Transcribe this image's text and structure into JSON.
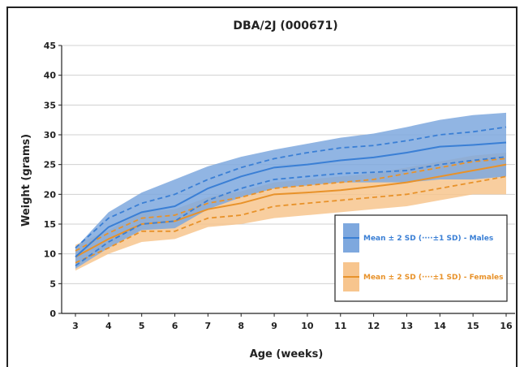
{
  "chart_data": {
    "type": "area",
    "title": "DBA/2J (000671)",
    "xlabel": "Age (weeks)",
    "ylabel": "Weight (grams)",
    "xlim": [
      3,
      16
    ],
    "ylim": [
      0,
      45
    ],
    "xticks": [
      3,
      4,
      5,
      6,
      7,
      8,
      9,
      10,
      11,
      12,
      13,
      14,
      15,
      16
    ],
    "yticks": [
      0,
      5,
      10,
      15,
      20,
      25,
      30,
      35,
      40,
      45
    ],
    "grid": true,
    "legend_position": "center-right",
    "x": [
      3,
      4,
      5,
      6,
      7,
      8,
      9,
      10,
      11,
      12,
      13,
      14,
      15,
      16
    ],
    "series": [
      {
        "name": "Mean ± 2 SD (····±1 SD) - Males",
        "color": "#3a7fd5",
        "band_color": "#7ea8de",
        "mean": [
          9.5,
          14.5,
          17.0,
          18.0,
          21.0,
          23.0,
          24.5,
          25.0,
          25.7,
          26.2,
          27.0,
          28.0,
          28.3,
          28.7
        ],
        "plus1sd": [
          11.0,
          16.0,
          18.5,
          20.0,
          22.5,
          24.5,
          26.0,
          27.0,
          27.8,
          28.2,
          29.0,
          30.0,
          30.5,
          31.3
        ],
        "minus1sd": [
          8.0,
          12.0,
          15.0,
          15.5,
          19.0,
          21.0,
          22.5,
          23.0,
          23.5,
          23.7,
          24.0,
          25.0,
          25.7,
          26.3
        ],
        "upper2sd": [
          11.0,
          17.0,
          20.3,
          22.5,
          24.7,
          26.3,
          27.5,
          28.5,
          29.5,
          30.2,
          31.3,
          32.5,
          33.3,
          33.7
        ],
        "lower2sd": [
          7.5,
          11.0,
          14.0,
          14.3,
          17.5,
          19.5,
          21.0,
          21.5,
          22.0,
          22.0,
          22.0,
          22.5,
          22.5,
          23.0
        ]
      },
      {
        "name": "Mean ± 2 SD (····±1 SD) - Females",
        "color": "#e8922a",
        "band_color": "#f7c58e",
        "mean": [
          9.5,
          12.5,
          15.0,
          15.5,
          17.5,
          18.5,
          20.0,
          20.3,
          20.7,
          21.3,
          22.0,
          23.0,
          24.0,
          25.0
        ],
        "plus1sd": [
          10.5,
          13.5,
          16.0,
          16.5,
          18.5,
          19.5,
          21.0,
          21.5,
          22.0,
          22.5,
          23.5,
          24.5,
          25.5,
          26.0
        ],
        "minus1sd": [
          8.5,
          11.0,
          13.8,
          13.8,
          16.0,
          16.5,
          18.0,
          18.5,
          19.0,
          19.5,
          20.0,
          21.0,
          22.0,
          23.0
        ],
        "upper2sd": [
          11.5,
          14.0,
          17.0,
          17.5,
          19.5,
          20.5,
          22.0,
          22.5,
          23.0,
          23.5,
          24.5,
          25.5,
          26.5,
          27.0
        ],
        "lower2sd": [
          7.2,
          10.0,
          12.0,
          12.5,
          14.5,
          15.0,
          16.0,
          16.5,
          17.0,
          17.5,
          18.0,
          19.0,
          20.0,
          20.0
        ]
      }
    ]
  }
}
